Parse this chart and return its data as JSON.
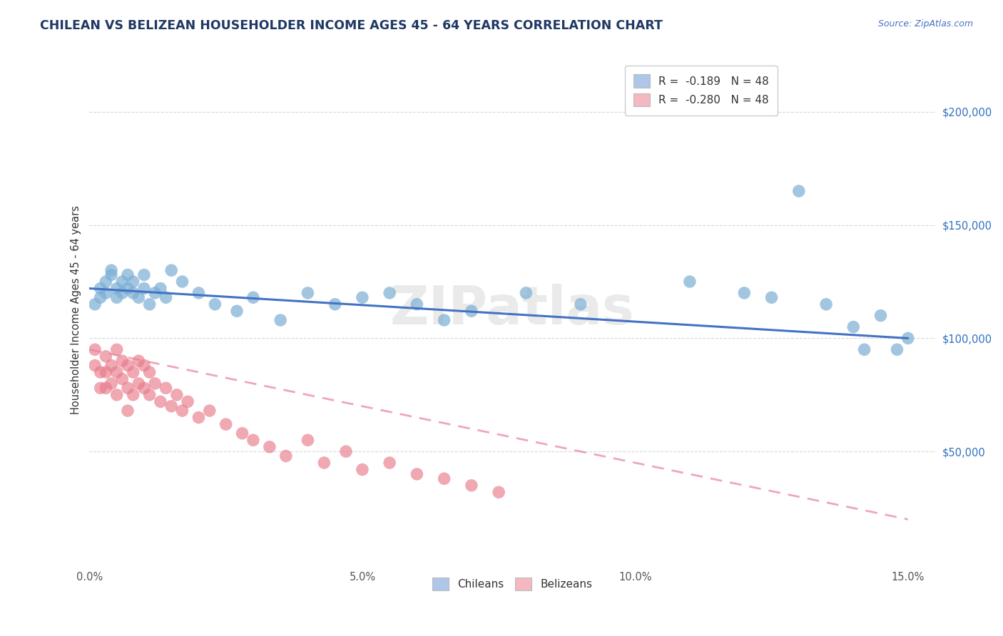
{
  "title": "CHILEAN VS BELIZEAN HOUSEHOLDER INCOME AGES 45 - 64 YEARS CORRELATION CHART",
  "source_text": "Source: ZipAtlas.com",
  "ylabel": "Householder Income Ages 45 - 64 years",
  "xlim": [
    0.0,
    0.155
  ],
  "ylim": [
    0,
    225000
  ],
  "yticks": [
    0,
    50000,
    100000,
    150000,
    200000
  ],
  "xticks": [
    0.0,
    0.05,
    0.1,
    0.15
  ],
  "chilean_color": "#7bafd4",
  "belizean_color": "#e87a8a",
  "chilean_line_color": "#4472c4",
  "belizean_line_color": "#e8829a",
  "legend_entries": [
    {
      "label": "R =  -0.189   N = 48",
      "color": "#aec6e8"
    },
    {
      "label": "R =  -0.280   N = 48",
      "color": "#f4b8c1"
    }
  ],
  "legend_bottom": [
    {
      "label": "Chileans",
      "color": "#aec6e8"
    },
    {
      "label": "Belizeans",
      "color": "#f4b8c1"
    }
  ],
  "background_color": "#ffffff",
  "grid_color": "#d8d8d8",
  "title_color": "#1f3864",
  "source_color": "#4472c4",
  "chilean_x": [
    0.001,
    0.002,
    0.002,
    0.003,
    0.003,
    0.004,
    0.004,
    0.005,
    0.005,
    0.006,
    0.006,
    0.007,
    0.007,
    0.008,
    0.008,
    0.009,
    0.01,
    0.01,
    0.011,
    0.012,
    0.013,
    0.014,
    0.015,
    0.017,
    0.02,
    0.023,
    0.027,
    0.03,
    0.035,
    0.04,
    0.045,
    0.05,
    0.055,
    0.06,
    0.065,
    0.07,
    0.08,
    0.09,
    0.11,
    0.12,
    0.125,
    0.13,
    0.135,
    0.14,
    0.142,
    0.145,
    0.148,
    0.15
  ],
  "chilean_y": [
    115000,
    122000,
    118000,
    125000,
    120000,
    130000,
    128000,
    122000,
    118000,
    125000,
    120000,
    128000,
    122000,
    120000,
    125000,
    118000,
    122000,
    128000,
    115000,
    120000,
    122000,
    118000,
    130000,
    125000,
    120000,
    115000,
    112000,
    118000,
    108000,
    120000,
    115000,
    118000,
    120000,
    115000,
    108000,
    112000,
    120000,
    115000,
    125000,
    120000,
    118000,
    165000,
    115000,
    105000,
    95000,
    110000,
    95000,
    100000
  ],
  "belizean_x": [
    0.001,
    0.001,
    0.002,
    0.002,
    0.003,
    0.003,
    0.003,
    0.004,
    0.004,
    0.005,
    0.005,
    0.005,
    0.006,
    0.006,
    0.007,
    0.007,
    0.007,
    0.008,
    0.008,
    0.009,
    0.009,
    0.01,
    0.01,
    0.011,
    0.011,
    0.012,
    0.013,
    0.014,
    0.015,
    0.016,
    0.017,
    0.018,
    0.02,
    0.022,
    0.025,
    0.028,
    0.03,
    0.033,
    0.036,
    0.04,
    0.043,
    0.047,
    0.05,
    0.055,
    0.06,
    0.065,
    0.07,
    0.075
  ],
  "belizean_y": [
    95000,
    88000,
    85000,
    78000,
    92000,
    85000,
    78000,
    88000,
    80000,
    95000,
    85000,
    75000,
    90000,
    82000,
    88000,
    78000,
    68000,
    85000,
    75000,
    90000,
    80000,
    88000,
    78000,
    85000,
    75000,
    80000,
    72000,
    78000,
    70000,
    75000,
    68000,
    72000,
    65000,
    68000,
    62000,
    58000,
    55000,
    52000,
    48000,
    55000,
    45000,
    50000,
    42000,
    45000,
    40000,
    38000,
    35000,
    32000
  ],
  "chilean_line_x": [
    0.0,
    0.15
  ],
  "chilean_line_y": [
    122000,
    100000
  ],
  "belizean_line_x": [
    0.0,
    0.15
  ],
  "belizean_line_y": [
    95000,
    20000
  ]
}
